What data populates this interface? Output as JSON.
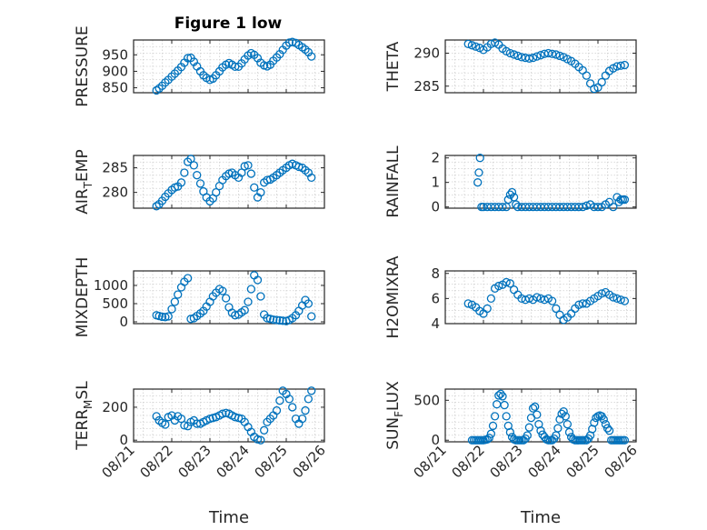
{
  "figure_title": "Figure 1 low",
  "xlabel": "Time",
  "chart_data": [
    {
      "type": "scatter",
      "title": "Figure 1 low",
      "ylabel": "PRESSURE",
      "ylim": [
        835,
        995
      ],
      "yticks": [
        850,
        900,
        950
      ],
      "ytick_labels": [
        "850",
        "900",
        "950"
      ],
      "xlim_days": [
        21,
        26
      ],
      "xtick_labels": [
        "08/21",
        "08/22",
        "08/23",
        "08/24",
        "08/25",
        "08/26"
      ],
      "grid": true,
      "series": [
        {
          "x": [
            21.6,
            21.67,
            21.75,
            21.83,
            21.91,
            22.0,
            22.08,
            22.16,
            22.25,
            22.33,
            22.42,
            22.5,
            22.58,
            22.66,
            22.75,
            22.83,
            22.91,
            23.0,
            23.08,
            23.16,
            23.25,
            23.33,
            23.42,
            23.5,
            23.58,
            23.66,
            23.75,
            23.83,
            23.91,
            24.0,
            24.08,
            24.16,
            24.25,
            24.33,
            24.42,
            24.5,
            24.58,
            24.66,
            24.75,
            24.83,
            24.91,
            25.0,
            25.08,
            25.16,
            25.25,
            25.33,
            25.42,
            25.5,
            25.58,
            25.66
          ],
          "values": [
            842,
            848,
            856,
            866,
            874,
            884,
            893,
            902,
            913,
            926,
            940,
            941,
            929,
            915,
            900,
            888,
            880,
            874,
            878,
            888,
            900,
            912,
            920,
            925,
            920,
            914,
            914,
            924,
            936,
            948,
            955,
            950,
            940,
            926,
            918,
            915,
            920,
            932,
            942,
            952,
            965,
            978,
            987,
            989,
            986,
            980,
            973,
            966,
            958,
            945
          ]
        }
      ]
    },
    {
      "type": "scatter",
      "ylabel": "THETA",
      "ylim": [
        284,
        292
      ],
      "yticks": [
        285,
        290
      ],
      "ytick_labels": [
        "285",
        "290"
      ],
      "xlim_days": [
        21,
        26
      ],
      "grid": true,
      "series": [
        {
          "x": [
            21.6,
            21.7,
            21.8,
            21.9,
            22.0,
            22.1,
            22.2,
            22.3,
            22.4,
            22.5,
            22.6,
            22.7,
            22.8,
            22.9,
            23.0,
            23.1,
            23.2,
            23.3,
            23.4,
            23.5,
            23.6,
            23.7,
            23.8,
            23.9,
            24.0,
            24.1,
            24.2,
            24.3,
            24.4,
            24.5,
            24.6,
            24.7,
            24.8,
            24.9,
            25.0,
            25.1,
            25.2,
            25.3,
            25.4,
            25.5,
            25.6,
            25.7
          ],
          "values": [
            291.4,
            291.2,
            291.0,
            290.8,
            290.5,
            290.9,
            291.4,
            291.6,
            291.3,
            290.7,
            290.3,
            290.0,
            289.8,
            289.6,
            289.4,
            289.3,
            289.2,
            289.3,
            289.5,
            289.7,
            289.9,
            290.0,
            289.9,
            289.8,
            289.6,
            289.4,
            289.1,
            288.8,
            288.4,
            287.9,
            287.4,
            286.6,
            285.4,
            284.6,
            284.8,
            285.6,
            286.6,
            287.3,
            287.7,
            288.0,
            288.1,
            288.2
          ]
        }
      ]
    },
    {
      "type": "scatter",
      "ylabel": "AIR_TEMP",
      "ylabel_parts": [
        "AIR",
        "T",
        "EMP"
      ],
      "ylim": [
        276.8,
        287.5
      ],
      "yticks": [
        280,
        285
      ],
      "ytick_labels": [
        "280",
        "285"
      ],
      "xlim_days": [
        21,
        26
      ],
      "grid": true,
      "series": [
        {
          "x": [
            21.6,
            21.67,
            21.75,
            21.83,
            21.91,
            22.0,
            22.08,
            22.16,
            22.25,
            22.33,
            22.42,
            22.5,
            22.58,
            22.66,
            22.75,
            22.83,
            22.91,
            23.0,
            23.08,
            23.16,
            23.25,
            23.33,
            23.42,
            23.5,
            23.58,
            23.66,
            23.75,
            23.83,
            23.91,
            24.0,
            24.08,
            24.16,
            24.25,
            24.33,
            24.42,
            24.5,
            24.58,
            24.66,
            24.75,
            24.83,
            24.91,
            25.0,
            25.08,
            25.16,
            25.25,
            25.33,
            25.42,
            25.5,
            25.58,
            25.66
          ],
          "values": [
            277.2,
            277.6,
            278.3,
            279.1,
            279.8,
            280.5,
            281.0,
            281.2,
            282.0,
            284.0,
            286.2,
            286.8,
            285.5,
            283.5,
            281.8,
            280.2,
            279.0,
            278.2,
            278.8,
            280.0,
            281.3,
            282.5,
            283.3,
            283.8,
            284.0,
            283.5,
            283.0,
            284.0,
            285.3,
            285.5,
            283.8,
            281.0,
            279.0,
            280.0,
            282.0,
            282.5,
            282.6,
            283.0,
            283.5,
            284.0,
            284.5,
            285.0,
            285.5,
            285.8,
            285.5,
            285.2,
            285.0,
            284.5,
            284.0,
            283.0
          ]
        }
      ]
    },
    {
      "type": "scatter",
      "ylabel": "RAINFALL",
      "ylim": [
        -0.05,
        2.1
      ],
      "yticks": [
        0,
        1,
        2
      ],
      "ytick_labels": [
        "0",
        "1",
        "2"
      ],
      "xlim_days": [
        21,
        26
      ],
      "grid": true,
      "series": [
        {
          "x": [
            21.85,
            21.88,
            21.91,
            21.95,
            22.0,
            22.1,
            22.2,
            22.3,
            22.4,
            22.5,
            22.6,
            22.65,
            22.7,
            22.75,
            22.8,
            22.85,
            22.9,
            23.0,
            23.1,
            23.2,
            23.3,
            23.4,
            23.5,
            23.6,
            23.7,
            23.8,
            23.9,
            24.0,
            24.1,
            24.2,
            24.3,
            24.4,
            24.5,
            24.6,
            24.7,
            24.8,
            24.9,
            25.0,
            25.1,
            25.2,
            25.3,
            25.4,
            25.5,
            25.55,
            25.6,
            25.65,
            25.7
          ],
          "values": [
            1.0,
            1.4,
            2.0,
            0.0,
            0.0,
            0.0,
            0.0,
            0.0,
            0.0,
            0.0,
            0.0,
            0.3,
            0.5,
            0.6,
            0.4,
            0.1,
            0.0,
            0.0,
            0.0,
            0.0,
            0.0,
            0.0,
            0.0,
            0.0,
            0.0,
            0.0,
            0.0,
            0.0,
            0.0,
            0.0,
            0.0,
            0.0,
            0.0,
            0.0,
            0.05,
            0.1,
            0.0,
            0.0,
            0.0,
            0.1,
            0.2,
            0.0,
            0.4,
            0.2,
            0.3,
            0.3,
            0.3
          ]
        }
      ]
    },
    {
      "type": "scatter",
      "ylabel": "MIXDEPTH",
      "ylim": [
        -50,
        1400
      ],
      "yticks": [
        0,
        500,
        1000
      ],
      "ytick_labels": [
        "0",
        "500",
        "1000"
      ],
      "xlim_days": [
        21,
        26
      ],
      "grid": true,
      "series": [
        {
          "x": [
            21.6,
            21.67,
            21.75,
            21.83,
            21.91,
            22.0,
            22.08,
            22.16,
            22.25,
            22.33,
            22.42,
            22.5,
            22.58,
            22.66,
            22.75,
            22.83,
            22.91,
            23.0,
            23.08,
            23.16,
            23.25,
            23.33,
            23.42,
            23.5,
            23.58,
            23.66,
            23.75,
            23.83,
            23.91,
            24.0,
            24.08,
            24.16,
            24.25,
            24.33,
            24.42,
            24.5,
            24.58,
            24.66,
            24.75,
            24.83,
            24.91,
            25.0,
            25.08,
            25.16,
            25.25,
            25.33,
            25.42,
            25.5,
            25.58,
            25.66
          ],
          "values": [
            180,
            160,
            140,
            130,
            150,
            350,
            550,
            750,
            950,
            1100,
            1200,
            80,
            100,
            160,
            230,
            300,
            420,
            550,
            700,
            800,
            900,
            850,
            650,
            400,
            250,
            180,
            200,
            260,
            320,
            550,
            900,
            1280,
            1150,
            700,
            200,
            100,
            80,
            60,
            50,
            40,
            30,
            20,
            50,
            100,
            180,
            300,
            450,
            600,
            500,
            150
          ]
        }
      ]
    },
    {
      "type": "scatter",
      "ylabel": "H2OMIXRA",
      "ylim": [
        4,
        8.2
      ],
      "yticks": [
        4,
        6,
        8
      ],
      "ytick_labels": [
        "4",
        "6",
        "8"
      ],
      "xlim_days": [
        21,
        26
      ],
      "grid": true,
      "series": [
        {
          "x": [
            21.6,
            21.7,
            21.8,
            21.9,
            22.0,
            22.1,
            22.2,
            22.3,
            22.4,
            22.5,
            22.6,
            22.7,
            22.8,
            22.9,
            23.0,
            23.1,
            23.2,
            23.3,
            23.4,
            23.5,
            23.6,
            23.7,
            23.8,
            23.9,
            24.0,
            24.1,
            24.2,
            24.3,
            24.4,
            24.5,
            24.6,
            24.7,
            24.8,
            24.9,
            25.0,
            25.1,
            25.2,
            25.3,
            25.4,
            25.5,
            25.6,
            25.7
          ],
          "values": [
            5.6,
            5.5,
            5.3,
            5.0,
            4.8,
            5.2,
            6.0,
            6.8,
            7.0,
            7.1,
            7.3,
            7.2,
            6.7,
            6.3,
            6.0,
            5.9,
            6.0,
            5.9,
            6.1,
            6.0,
            5.9,
            6.0,
            5.8,
            5.2,
            4.7,
            4.3,
            4.5,
            4.8,
            5.2,
            5.5,
            5.6,
            5.6,
            5.8,
            6.0,
            6.2,
            6.4,
            6.5,
            6.3,
            6.1,
            6.0,
            5.9,
            5.8
          ]
        }
      ]
    },
    {
      "type": "scatter",
      "ylabel": "TERR_MSL",
      "ylabel_parts": [
        "TERR",
        "M",
        "SL"
      ],
      "ylim": [
        -10,
        310
      ],
      "yticks": [
        0,
        200
      ],
      "ytick_labels": [
        "0",
        "200"
      ],
      "xlim_days": [
        21,
        26
      ],
      "grid": true,
      "series": [
        {
          "x": [
            21.6,
            21.67,
            21.75,
            21.83,
            21.91,
            22.0,
            22.08,
            22.16,
            22.25,
            22.33,
            22.42,
            22.5,
            22.58,
            22.66,
            22.75,
            22.83,
            22.91,
            23.0,
            23.08,
            23.16,
            23.25,
            23.33,
            23.42,
            23.5,
            23.58,
            23.66,
            23.75,
            23.83,
            23.91,
            24.0,
            24.08,
            24.16,
            24.25,
            24.33,
            24.42,
            24.5,
            24.58,
            24.66,
            24.75,
            24.83,
            24.91,
            25.0,
            25.08,
            25.16,
            25.25,
            25.33,
            25.42,
            25.5,
            25.58,
            25.66
          ],
          "values": [
            145,
            120,
            105,
            95,
            140,
            150,
            120,
            145,
            130,
            90,
            85,
            110,
            120,
            100,
            100,
            110,
            120,
            130,
            135,
            140,
            150,
            160,
            165,
            160,
            150,
            140,
            135,
            130,
            110,
            80,
            50,
            20,
            5,
            0,
            60,
            110,
            130,
            150,
            180,
            240,
            300,
            280,
            250,
            200,
            130,
            100,
            130,
            180,
            250,
            300
          ]
        }
      ]
    },
    {
      "type": "scatter",
      "ylabel": "SUN_FLUX",
      "ylabel_parts": [
        "SUN",
        "F",
        "LUX"
      ],
      "ylim": [
        -20,
        640
      ],
      "yticks": [
        0,
        500
      ],
      "ytick_labels": [
        "0",
        "500"
      ],
      "xlim_days": [
        21,
        26
      ],
      "grid": true,
      "series": [
        {
          "x": [
            21.7,
            21.75,
            21.8,
            21.85,
            21.9,
            21.95,
            22.0,
            22.05,
            22.1,
            22.15,
            22.2,
            22.25,
            22.3,
            22.35,
            22.4,
            22.45,
            22.5,
            22.55,
            22.6,
            22.65,
            22.7,
            22.75,
            22.8,
            22.85,
            22.9,
            22.95,
            23.0,
            23.05,
            23.1,
            23.15,
            23.2,
            23.25,
            23.3,
            23.35,
            23.4,
            23.45,
            23.5,
            23.55,
            23.6,
            23.65,
            23.7,
            23.75,
            23.8,
            23.85,
            23.9,
            23.95,
            24.0,
            24.05,
            24.1,
            24.15,
            24.2,
            24.25,
            24.3,
            24.35,
            24.4,
            24.45,
            24.5,
            24.55,
            24.6,
            24.65,
            24.7,
            24.75,
            24.8,
            24.85,
            24.9,
            24.95,
            25.0,
            25.05,
            25.1,
            25.15,
            25.2,
            25.25,
            25.3,
            25.35,
            25.4,
            25.45,
            25.5,
            25.55,
            25.6,
            25.65,
            25.7
          ],
          "values": [
            0,
            0,
            0,
            0,
            0,
            0,
            0,
            5,
            10,
            30,
            80,
            180,
            300,
            450,
            560,
            580,
            550,
            440,
            300,
            180,
            100,
            40,
            10,
            0,
            0,
            0,
            0,
            0,
            20,
            60,
            160,
            280,
            400,
            420,
            320,
            200,
            120,
            70,
            40,
            10,
            0,
            0,
            0,
            20,
            60,
            150,
            260,
            330,
            360,
            300,
            200,
            100,
            40,
            10,
            0,
            0,
            0,
            0,
            0,
            0,
            0,
            20,
            60,
            140,
            220,
            280,
            300,
            310,
            300,
            260,
            200,
            150,
            120,
            0,
            0,
            0,
            0,
            0,
            0,
            0,
            0
          ]
        }
      ]
    }
  ]
}
